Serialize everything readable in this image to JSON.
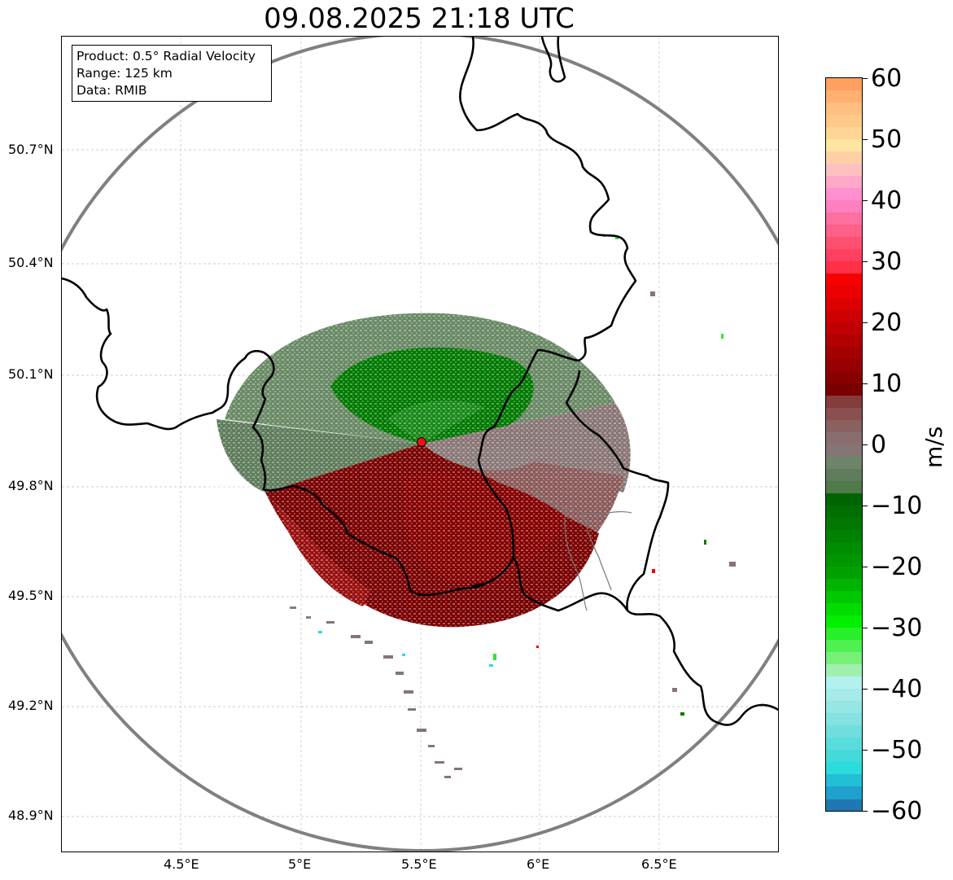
{
  "title": "09.08.2025 21:18 UTC",
  "info": {
    "product": "Product: 0.5° Radial Velocity",
    "range": "Range: 125 km",
    "data": "Data: RMIB"
  },
  "map": {
    "lon_ticks": [
      "4.5°E",
      "5°E",
      "5.5°E",
      "6°E",
      "6.5°E"
    ],
    "lat_ticks": [
      "50.7°N",
      "50.4°N",
      "50.1°N",
      "49.8°N",
      "49.5°N",
      "49.2°N",
      "48.9°N"
    ],
    "grid": true,
    "radar_site_marker": "red-circle",
    "range_ring_color": "#808080",
    "border_color": "#000000"
  },
  "colorbar": {
    "label": "m/s",
    "ticks": [
      "60",
      "50",
      "40",
      "30",
      "20",
      "10",
      "0",
      "−10",
      "−20",
      "−30",
      "−40",
      "−50",
      "−60"
    ],
    "range": [
      -60,
      60
    ],
    "colors": {
      "approaching_strong": "#1f78b4",
      "approaching_cyan": "#2adcdc",
      "approaching_green": "#00c800",
      "near_zero_green": "#5a7f5a",
      "near_zero_grey": "#857575",
      "receding_dark_red": "#800000",
      "receding_red": "#f20000",
      "receding_pink": "#ff80c0",
      "receding_orange": "#ffa060"
    }
  }
}
